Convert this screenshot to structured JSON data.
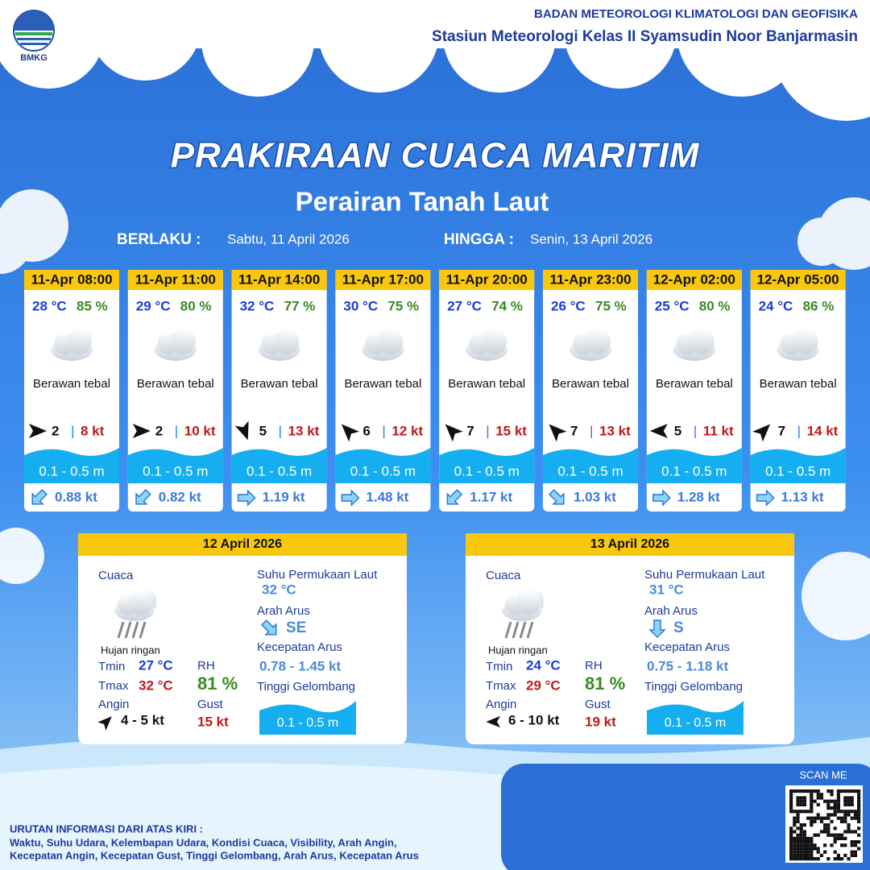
{
  "header": {
    "logo_text": "BMKG",
    "agency": "BADAN METEOROLOGI KLIMATOLOGI DAN GEOFISIKA",
    "station": "Stasiun Meteorologi Kelas II Syamsudin Noor Banjarmasin"
  },
  "title": "PRAKIRAAN CUACA MARITIM",
  "subtitle": "Perairan Tanah Laut",
  "validity": {
    "from_label": "BERLAKU :",
    "from": "Sabtu, 11 April 2026",
    "to_label": "HINGGA :",
    "to": "Senin, 13 April 2026"
  },
  "forecasts": [
    {
      "time": "11-Apr 08:00",
      "temperature": "28 °C",
      "humidity": "85 %",
      "weather": "Berawan tebal",
      "wind_speed": "2",
      "gust": "8 kt",
      "wave": "0.1 - 0.5 m",
      "current_speed": "0.88 kt"
    },
    {
      "time": "11-Apr 11:00",
      "temperature": "29 °C",
      "humidity": "80 %",
      "weather": "Berawan tebal",
      "wind_speed": "2",
      "gust": "10 kt",
      "wave": "0.1 - 0.5 m",
      "current_speed": "0.82 kt"
    },
    {
      "time": "11-Apr 14:00",
      "temperature": "32 °C",
      "humidity": "77 %",
      "weather": "Berawan tebal",
      "wind_speed": "5",
      "gust": "13 kt",
      "wave": "0.1 - 0.5 m",
      "current_speed": "1.19 kt"
    },
    {
      "time": "11-Apr 17:00",
      "temperature": "30 °C",
      "humidity": "75 %",
      "weather": "Berawan tebal",
      "wind_speed": "6",
      "gust": "12 kt",
      "wave": "0.1 - 0.5 m",
      "current_speed": "1.48 kt"
    },
    {
      "time": "11-Apr 20:00",
      "temperature": "27 °C",
      "humidity": "74 %",
      "weather": "Berawan tebal",
      "wind_speed": "7",
      "gust": "15 kt",
      "wave": "0.1 - 0.5 m",
      "current_speed": "1.17 kt"
    },
    {
      "time": "11-Apr 23:00",
      "temperature": "26 °C",
      "humidity": "75 %",
      "weather": "Berawan tebal",
      "wind_speed": "7",
      "gust": "13 kt",
      "wave": "0.1 - 0.5 m",
      "current_speed": "1.03 kt"
    },
    {
      "time": "12-Apr 02:00",
      "temperature": "25 °C",
      "humidity": "80 %",
      "weather": "Berawan tebal",
      "wind_speed": "5",
      "gust": "11 kt",
      "wave": "0.1 - 0.5 m",
      "current_speed": "1.28 kt"
    },
    {
      "time": "12-Apr 05:00",
      "temperature": "24 °C",
      "humidity": "86 %",
      "weather": "Berawan tebal",
      "wind_speed": "7",
      "gust": "14 kt",
      "wave": "0.1 - 0.5 m",
      "current_speed": "1.13 kt"
    }
  ],
  "daily_labels": {
    "weather": "Cuaca",
    "tmin": "Tmin",
    "tmax": "Tmax",
    "wind": "Angin",
    "rh": "RH",
    "gust": "Gust",
    "sst": "Suhu Permukaan Laut",
    "current_direction": "Arah Arus",
    "current_speed": "Kecepatan Arus",
    "wave": "Tinggi Gelombang"
  },
  "daily": [
    {
      "date": "12 April 2026",
      "weather": "Hujan ringan",
      "tmin": "27 °C",
      "tmax": "32 °C",
      "wind": "4 - 5 kt",
      "rh": "81 %",
      "gust": "15 kt",
      "sst": "32 °C",
      "current_direction": "SE",
      "current_speed": "0.78 - 1.45 kt",
      "wave": "0.1 - 0.5 m"
    },
    {
      "date": "13 April 2026",
      "weather": "Hujan ringan",
      "tmin": "24 °C",
      "tmax": "29 °C",
      "wind": "6 - 10 kt",
      "rh": "81 %",
      "gust": "19 kt",
      "sst": "31 °C",
      "current_direction": "S",
      "current_speed": "0.75 - 1.18 kt",
      "wave": "0.1 - 0.5 m"
    }
  ],
  "qr_label": "SCAN ME",
  "notes": {
    "title": "URUTAN INFORMASI DARI ATAS KIRI :",
    "lines": [
      "Waktu, Suhu Udara, Kelembapan Udara, Kondisi Cuaca, Visibility, Arah Angin,",
      "Kecepatan Angin, Kecepatan Gust, Tinggi Gelombang, Arah Arus, Kecepatan Arus"
    ]
  }
}
